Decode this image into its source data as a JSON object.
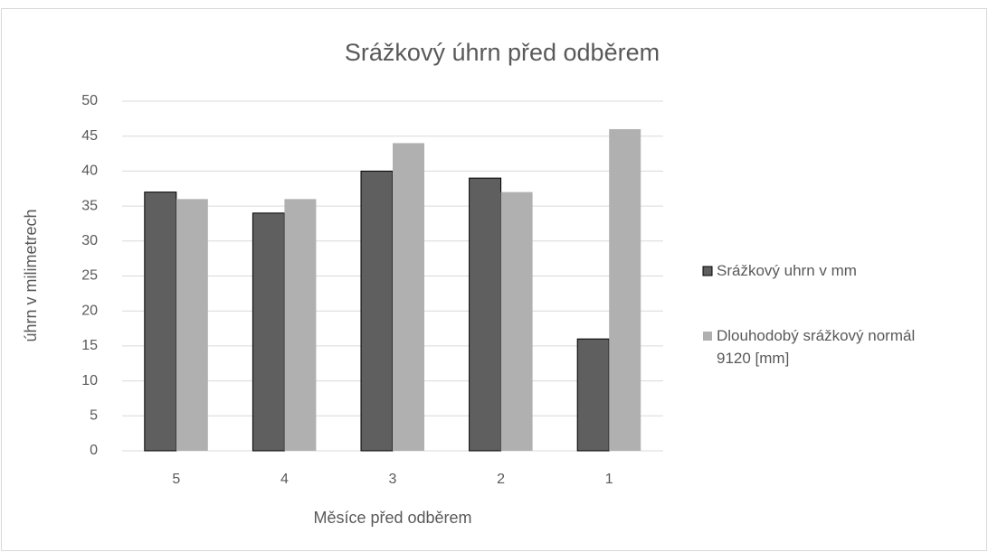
{
  "chart_data": {
    "type": "bar",
    "title": "Srážkový úhrn před odběrem",
    "xlabel": "Měsíce před odběrem",
    "ylabel": "úhrn v milimetrech",
    "categories": [
      "5",
      "4",
      "3",
      "2",
      "1"
    ],
    "series": [
      {
        "name": "Srážkový uhrn v mm",
        "color": "#5f5f5f",
        "values": [
          37,
          34,
          40,
          39,
          16
        ]
      },
      {
        "name": "Dlouhodobý srážkový normál 9120 [mm]",
        "color": "#b0b0b0",
        "values": [
          36,
          36,
          44,
          37,
          46
        ]
      }
    ],
    "ylim": [
      0,
      50
    ],
    "yticks": [
      0,
      5,
      10,
      15,
      20,
      25,
      30,
      35,
      40,
      45,
      50
    ],
    "grid": true,
    "legend": "right"
  }
}
